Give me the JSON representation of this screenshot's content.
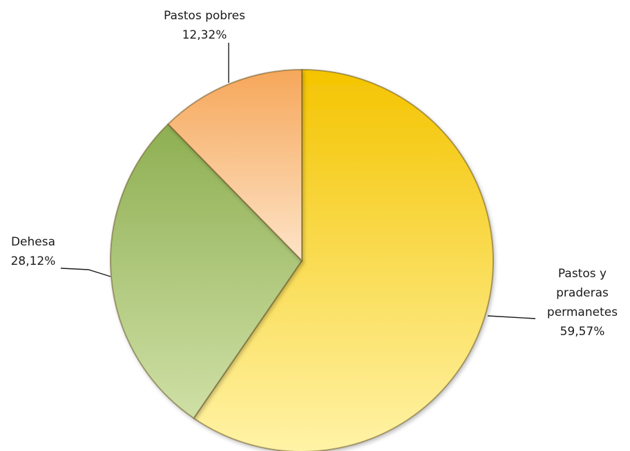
{
  "chart_data": {
    "type": "pie",
    "slices": [
      {
        "name_lines": [
          "Pastos y",
          "praderas",
          "permanetes"
        ],
        "value_label": "59,57%",
        "value": 59.57,
        "color_light": "#fff3a6",
        "color_dark": "#f4c400"
      },
      {
        "name_lines": [
          "Dehesa"
        ],
        "value_label": "28,12%",
        "value": 28.12,
        "color_light": "#cfe0a6",
        "color_dark": "#8eaf52"
      },
      {
        "name_lines": [
          "Pastos pobres"
        ],
        "value_label": "12,32%",
        "value": 12.32,
        "color_light": "#fde4c8",
        "color_dark": "#f6a75a"
      }
    ],
    "start_angle": "12 o'clock",
    "direction": "clockwise",
    "legend": "none",
    "labels": "outside with leader lines"
  }
}
